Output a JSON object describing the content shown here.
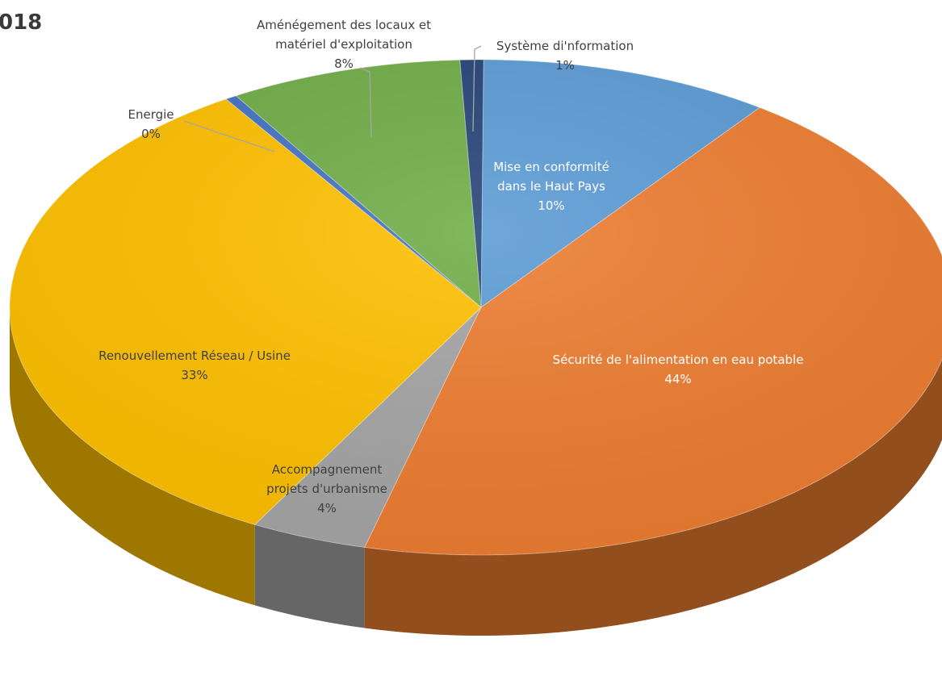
{
  "page": {
    "title": "018"
  },
  "chart_data": {
    "type": "pie",
    "title": "018",
    "style": "3d",
    "slices": [
      {
        "id": "haut-pays",
        "label_lines": [
          "Mise en conformité",
          "dans le Haut Pays"
        ],
        "percent_label": "10%",
        "value": 10,
        "color": "#5b9bd5"
      },
      {
        "id": "securite",
        "label_lines": [
          "Sécurité de l'alimentation en eau potable"
        ],
        "percent_label": "44%",
        "value": 44,
        "color": "#ed7d31"
      },
      {
        "id": "urbanisme",
        "label_lines": [
          "Accompagnement",
          "projets d'urbanisme"
        ],
        "percent_label": "4%",
        "value": 4,
        "color": "#a5a5a5"
      },
      {
        "id": "renouvellement",
        "label_lines": [
          "Renouvellement  Réseau / Usine"
        ],
        "percent_label": "33%",
        "value": 33,
        "color": "#ffc000"
      },
      {
        "id": "energie",
        "label_lines": [
          "Energie"
        ],
        "percent_label": "0%",
        "value": 0.4,
        "color": "#4472c4"
      },
      {
        "id": "amenagement",
        "label_lines": [
          "Aménégement des locaux et",
          "matériel d'exploitation"
        ],
        "percent_label": "8%",
        "value": 8,
        "color": "#70ad47"
      },
      {
        "id": "systeme",
        "label_lines": [
          "Système di'nformation"
        ],
        "percent_label": "1%",
        "value": 0.8,
        "color": "#264478"
      }
    ]
  }
}
